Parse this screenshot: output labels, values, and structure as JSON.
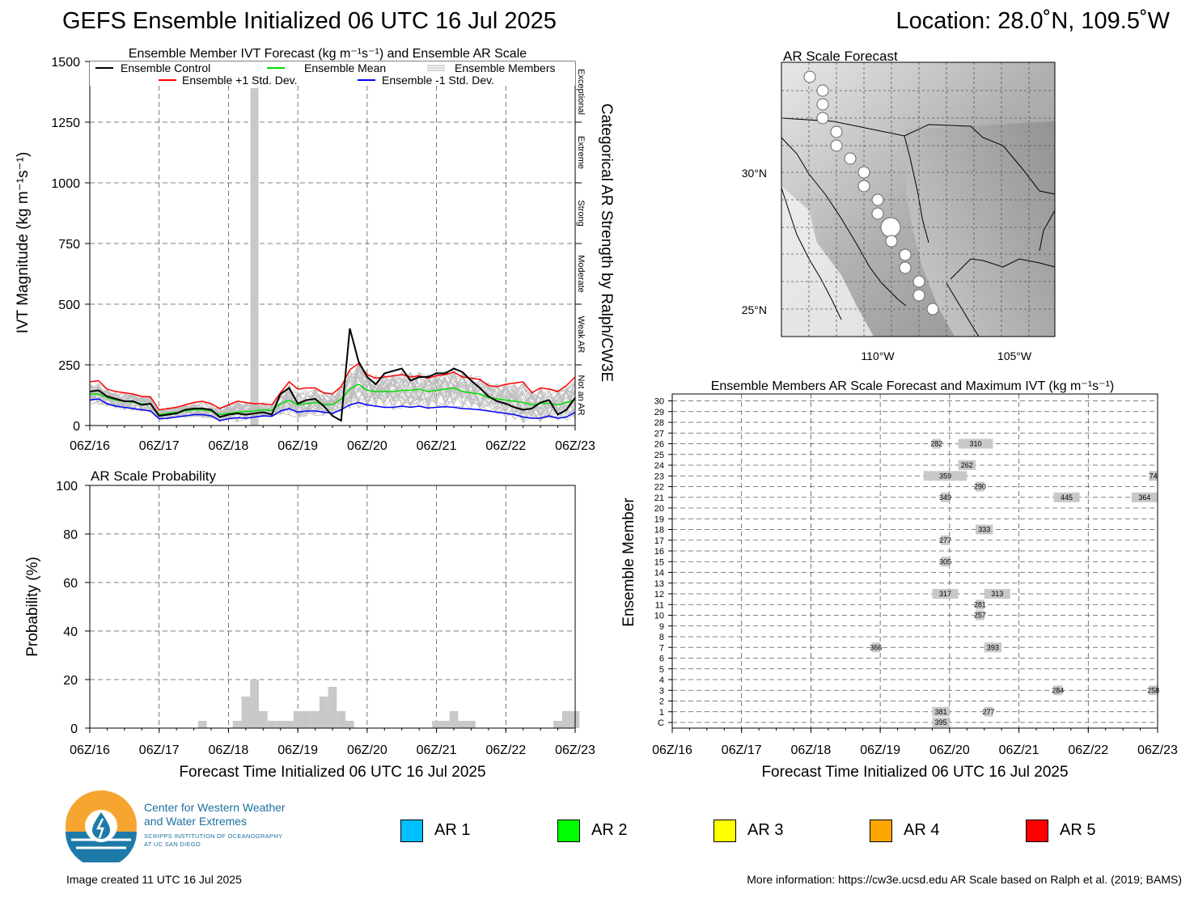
{
  "header": {
    "title": "GEFS Ensemble Initialized 06 UTC 16 Jul 2025",
    "location": "Location: 28.0˚N, 109.5˚W"
  },
  "ivt_panel": {
    "title": "Ensemble Member IVT Forecast (kg m⁻¹s⁻¹) and Ensemble AR Scale",
    "ylabel": "IVT Magnitude (kg m⁻¹s⁻¹)",
    "right_label": "Categorical AR Strength by Ralph/CW3E",
    "categories": [
      "Exceptional",
      "Extreme",
      "Strong",
      "Moderate",
      "Weak AR",
      "Not an AR"
    ],
    "legend": [
      "Ensemble Control",
      "Ensemble Mean",
      "Ensemble Members",
      "Ensemble +1 Std. Dev.",
      "Ensemble -1 Std. Dev."
    ]
  },
  "prob_panel": {
    "title": "AR Scale Probability",
    "ylabel": "Probability (%)",
    "xlabel": "Forecast Time Initialized 06 UTC 16 Jul 2025"
  },
  "map_panel": {
    "title": "AR Scale Forecast",
    "lat_labels": [
      "30°N",
      "25°N"
    ],
    "lon_labels": [
      "110°W",
      "105°W"
    ]
  },
  "members_panel": {
    "title": "Ensemble Members AR Scale Forecast and Maximum IVT (kg m⁻¹s⁻¹)",
    "ylabel": "Ensemble Member",
    "xlabel": "Forecast Time Initialized 06 UTC 16 Jul 2025"
  },
  "ar_legend": [
    {
      "label": "AR 1",
      "color": "#00bfff"
    },
    {
      "label": "AR 2",
      "color": "#00ff00"
    },
    {
      "label": "AR 3",
      "color": "#ffff00"
    },
    {
      "label": "AR 4",
      "color": "#ffa500"
    },
    {
      "label": "AR 5",
      "color": "#ff0000"
    }
  ],
  "logo": {
    "line1": "Center for Western Weather",
    "line2": "and Water Extremes",
    "line3": "SCRIPPS INSTITUTION OF OCEANOGRAPHY",
    "line4": "AT UC SAN DIEGO"
  },
  "footer": {
    "created": "Image created 11 UTC 16 Jul 2025",
    "info": "More information: https://cw3e.ucsd.edu AR Scale based on Ralph et al. (2019; BAMS)"
  },
  "chart_data": [
    {
      "type": "line",
      "x_ticks": [
        "06Z/16",
        "06Z/17",
        "06Z/18",
        "06Z/19",
        "06Z/20",
        "06Z/21",
        "06Z/22",
        "06Z/23"
      ],
      "ylim": [
        0,
        1500
      ],
      "y_ticks": [
        0,
        250,
        500,
        750,
        1000,
        1250,
        1500
      ],
      "hours": [
        0,
        3,
        6,
        9,
        12,
        15,
        18,
        21,
        24,
        27,
        30,
        33,
        36,
        39,
        42,
        45,
        48,
        51,
        54,
        57,
        60,
        63,
        66,
        69,
        72,
        75,
        78,
        81,
        84,
        87,
        90,
        93,
        96,
        99,
        102,
        105,
        108,
        111,
        114,
        117,
        120,
        123,
        126,
        129,
        132,
        135,
        138,
        141,
        144,
        147,
        150,
        153,
        156,
        159,
        162,
        165,
        168
      ],
      "series": [
        {
          "name": "Ensemble Control",
          "color": "#000000",
          "values": [
            140,
            145,
            120,
            110,
            100,
            100,
            85,
            90,
            40,
            45,
            50,
            65,
            70,
            70,
            65,
            35,
            45,
            50,
            45,
            50,
            55,
            45,
            130,
            155,
            90,
            105,
            110,
            80,
            40,
            20,
            400,
            265,
            200,
            170,
            215,
            225,
            235,
            185,
            200,
            200,
            215,
            215,
            235,
            220,
            185,
            155,
            120,
            100,
            90,
            75,
            65,
            70,
            95,
            105,
            45,
            65,
            115
          ]
        },
        {
          "name": "Ensemble Mean",
          "color": "#00dd00",
          "values": [
            130,
            130,
            115,
            105,
            100,
            95,
            90,
            88,
            45,
            50,
            55,
            60,
            65,
            65,
            60,
            45,
            50,
            55,
            58,
            60,
            65,
            62,
            90,
            105,
            85,
            90,
            95,
            88,
            85,
            110,
            150,
            170,
            145,
            140,
            140,
            140,
            145,
            145,
            150,
            140,
            145,
            150,
            155,
            140,
            135,
            130,
            115,
            110,
            105,
            100,
            95,
            85,
            90,
            92,
            85,
            95,
            105
          ]
        },
        {
          "name": "Ensemble +1 Std. Dev.",
          "color": "#ff0000",
          "values": [
            180,
            185,
            150,
            140,
            135,
            130,
            120,
            118,
            65,
            70,
            75,
            85,
            95,
            100,
            90,
            70,
            85,
            100,
            95,
            90,
            90,
            85,
            135,
            180,
            150,
            155,
            155,
            135,
            130,
            160,
            230,
            255,
            210,
            195,
            200,
            205,
            210,
            200,
            205,
            195,
            205,
            210,
            220,
            200,
            195,
            190,
            165,
            160,
            170,
            175,
            180,
            135,
            155,
            150,
            140,
            165,
            200
          ]
        },
        {
          "name": "Ensemble -1 Std. Dev.",
          "color": "#0000ff",
          "values": [
            105,
            110,
            90,
            80,
            75,
            70,
            65,
            60,
            28,
            30,
            35,
            40,
            45,
            45,
            40,
            20,
            28,
            32,
            30,
            35,
            40,
            38,
            60,
            70,
            55,
            60,
            60,
            55,
            50,
            65,
            85,
            95,
            85,
            80,
            75,
            75,
            80,
            75,
            80,
            72,
            75,
            78,
            75,
            70,
            68,
            65,
            60,
            55,
            50,
            45,
            35,
            30,
            30,
            40,
            30,
            35,
            55
          ]
        }
      ],
      "spike_bar": {
        "hour": 57,
        "value": 1390
      }
    },
    {
      "type": "bar",
      "x_ticks": [
        "06Z/16",
        "06Z/17",
        "06Z/18",
        "06Z/19",
        "06Z/20",
        "06Z/21",
        "06Z/22",
        "06Z/23"
      ],
      "ylim": [
        0,
        100
      ],
      "y_ticks": [
        0,
        20,
        40,
        60,
        80,
        100
      ],
      "hours": [
        39,
        51,
        54,
        57,
        60,
        63,
        66,
        69,
        72,
        75,
        78,
        81,
        84,
        87,
        90,
        120,
        123,
        126,
        129,
        132,
        135,
        141,
        144,
        147,
        150,
        162,
        165,
        168
      ],
      "values": [
        3,
        3,
        13,
        20,
        7,
        3,
        3,
        3,
        7,
        7,
        7,
        13,
        17,
        7,
        3,
        3,
        3,
        7,
        3,
        3,
        0,
        0,
        0,
        0,
        0,
        3,
        7,
        7
      ]
    },
    {
      "type": "table",
      "members": [
        "C",
        "1",
        "2",
        "3",
        "4",
        "5",
        "6",
        "7",
        "8",
        "9",
        "10",
        "11",
        "12",
        "13",
        "14",
        "15",
        "16",
        "17",
        "18",
        "19",
        "20",
        "21",
        "22",
        "23",
        "24",
        "25",
        "26",
        "27",
        "28",
        "29",
        "30"
      ],
      "x_ticks": [
        "06Z/16",
        "06Z/17",
        "06Z/18",
        "06Z/19",
        "06Z/20",
        "06Z/21",
        "06Z/22",
        "06Z/23"
      ],
      "events": [
        {
          "member": "C",
          "start": 90,
          "end": 96,
          "ivt": 395
        },
        {
          "member": "1",
          "start": 90,
          "end": 96,
          "ivt": 381
        },
        {
          "member": "1",
          "start": 108,
          "end": 111,
          "ivt": 277
        },
        {
          "member": "3",
          "start": 132,
          "end": 135,
          "ivt": 284
        },
        {
          "member": "3",
          "start": 165,
          "end": 168,
          "ivt": 258
        },
        {
          "member": "7",
          "start": 69,
          "end": 72,
          "ivt": 366
        },
        {
          "member": "7",
          "start": 108,
          "end": 114,
          "ivt": 393
        },
        {
          "member": "10",
          "start": 105,
          "end": 108,
          "ivt": 257
        },
        {
          "member": "11",
          "start": 105,
          "end": 108,
          "ivt": 281
        },
        {
          "member": "12",
          "start": 90,
          "end": 99,
          "ivt": 317
        },
        {
          "member": "12",
          "start": 108,
          "end": 117,
          "ivt": 313
        },
        {
          "member": "15",
          "start": 93,
          "end": 96,
          "ivt": 305
        },
        {
          "member": "17",
          "start": 93,
          "end": 96,
          "ivt": 277
        },
        {
          "member": "18",
          "start": 105,
          "end": 111,
          "ivt": 333
        },
        {
          "member": "21",
          "start": 93,
          "end": 96,
          "ivt": 349
        },
        {
          "member": "21",
          "start": 132,
          "end": 141,
          "ivt": 445
        },
        {
          "member": "21",
          "start": 159,
          "end": 168,
          "ivt": 364
        },
        {
          "member": "22",
          "start": 105,
          "end": 108,
          "ivt": 290
        },
        {
          "member": "23",
          "start": 87,
          "end": 102,
          "ivt": 359
        },
        {
          "member": "23",
          "start": 165,
          "end": 168,
          "ivt": 74
        },
        {
          "member": "24",
          "start": 99,
          "end": 105,
          "ivt": 262
        },
        {
          "member": "26",
          "start": 90,
          "end": 93,
          "ivt": 282
        },
        {
          "member": "26",
          "start": 99,
          "end": 111,
          "ivt": 310
        }
      ]
    }
  ]
}
